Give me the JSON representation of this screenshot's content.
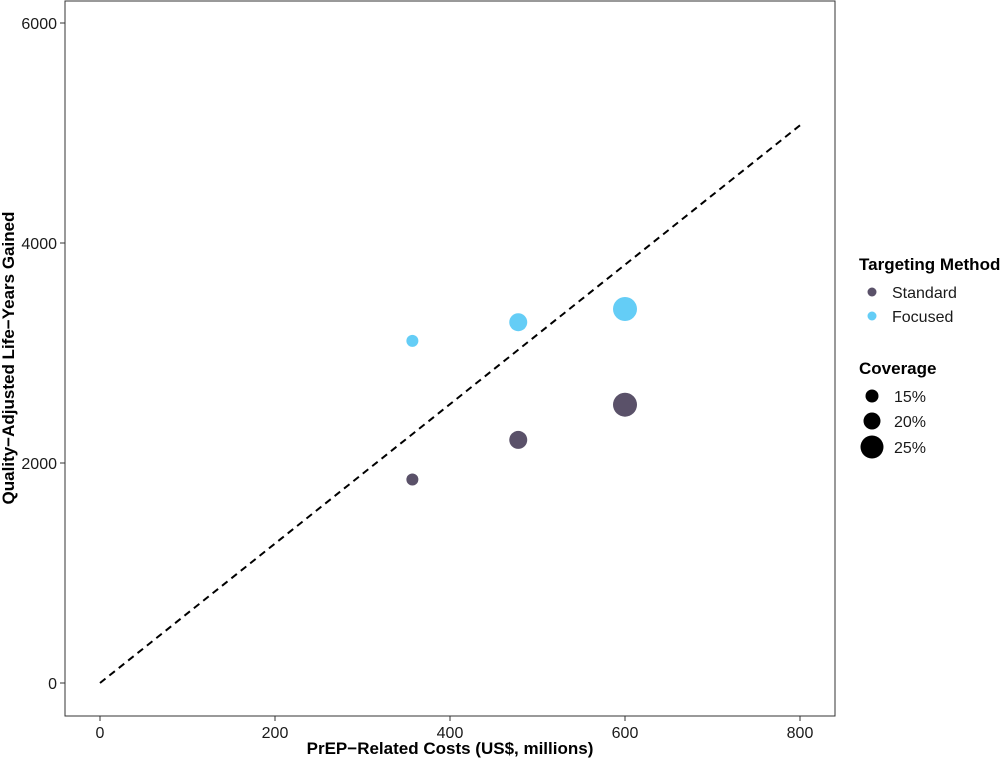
{
  "chart_data": {
    "type": "scatter",
    "title": "",
    "xlabel": "PrEP−Related Costs (US$, millions)",
    "ylabel": "Quality−Adjusted Life−Years Gained",
    "xlim": [
      -40,
      840
    ],
    "ylim": [
      -300,
      6200
    ],
    "x_ticks": [
      0,
      200,
      400,
      600,
      800
    ],
    "y_ticks": [
      0,
      2000,
      4000,
      6000
    ],
    "x_tick_labels": [
      "0",
      "200",
      "400",
      "600",
      "800"
    ],
    "y_tick_labels": [
      "0",
      "2000",
      "4000",
      "6000"
    ],
    "grid": false,
    "reference_line": {
      "style": "dashed",
      "color": "#000000",
      "x": [
        0,
        800
      ],
      "y": [
        0,
        5070
      ]
    },
    "series": [
      {
        "name": "Standard",
        "color": "#5a5169",
        "points": [
          {
            "x": 357,
            "y": 1850,
            "coverage": "15%"
          },
          {
            "x": 478,
            "y": 2210,
            "coverage": "20%"
          },
          {
            "x": 600,
            "y": 2530,
            "coverage": "25%"
          }
        ]
      },
      {
        "name": "Focused",
        "color": "#64cdf6",
        "points": [
          {
            "x": 357,
            "y": 3110,
            "coverage": "15%"
          },
          {
            "x": 478,
            "y": 3280,
            "coverage": "20%"
          },
          {
            "x": 600,
            "y": 3400,
            "coverage": "25%"
          }
        ]
      }
    ],
    "legend": {
      "placement": "right",
      "color_title": "Targeting Method",
      "color_items": [
        {
          "label": "Standard",
          "color": "#5a5169"
        },
        {
          "label": "Focused",
          "color": "#64cdf6"
        }
      ],
      "size_title": "Coverage",
      "size_items": [
        {
          "label": "15%",
          "color": "#000000"
        },
        {
          "label": "20%",
          "color": "#000000"
        },
        {
          "label": "25%",
          "color": "#000000"
        }
      ]
    }
  }
}
